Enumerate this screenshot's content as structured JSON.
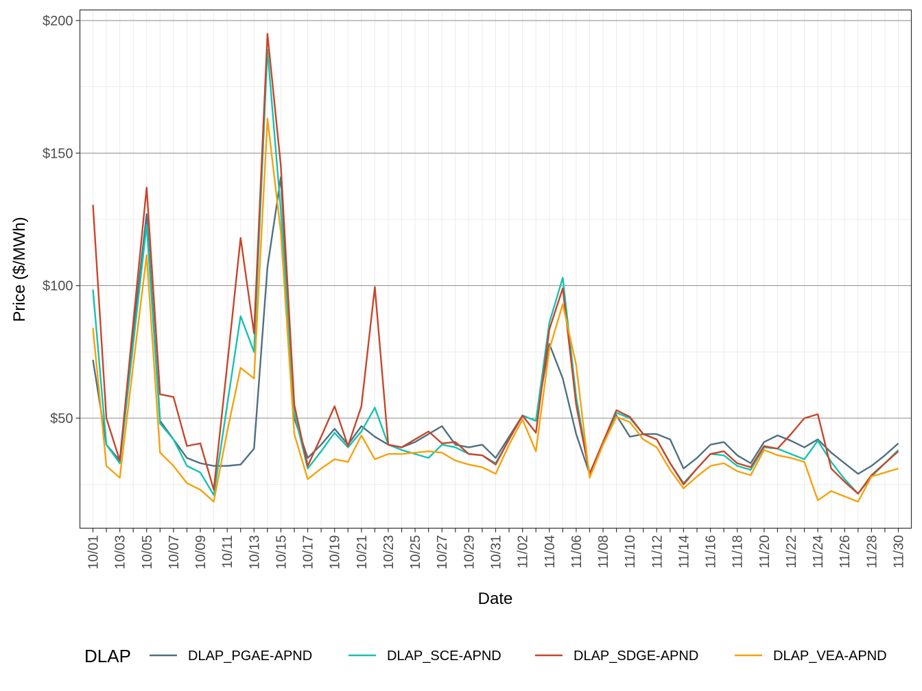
{
  "chart_data": {
    "type": "line",
    "title": "",
    "xlabel": "Date",
    "ylabel": "Price ($/MWh)",
    "ylim": [
      8.5,
      204
    ],
    "yticks": [
      50,
      100,
      150,
      200
    ],
    "ytick_labels": [
      "$50",
      "$100",
      "$150",
      "$200"
    ],
    "y_minor_ticks": [
      25,
      75,
      125,
      175
    ],
    "grid": true,
    "legend_position": "bottom",
    "legend_title": "DLAP",
    "x": [
      "10/01",
      "10/02",
      "10/03",
      "10/04",
      "10/05",
      "10/06",
      "10/07",
      "10/08",
      "10/09",
      "10/10",
      "10/11",
      "10/12",
      "10/13",
      "10/14",
      "10/15",
      "10/16",
      "10/17",
      "10/18",
      "10/19",
      "10/20",
      "10/21",
      "10/22",
      "10/23",
      "10/24",
      "10/25",
      "10/26",
      "10/27",
      "10/28",
      "10/29",
      "10/30",
      "10/31",
      "11/01",
      "11/02",
      "11/03",
      "11/04",
      "11/05",
      "11/06",
      "11/07",
      "11/08",
      "11/09",
      "11/10",
      "11/11",
      "11/12",
      "11/13",
      "11/14",
      "11/15",
      "11/16",
      "11/17",
      "11/18",
      "11/19",
      "11/20",
      "11/21",
      "11/22",
      "11/23",
      "11/24",
      "11/25",
      "11/26",
      "11/27",
      "11/28",
      "11/29",
      "11/30"
    ],
    "x_tick_labels": [
      "10/01",
      "10/03",
      "10/05",
      "10/07",
      "10/09",
      "10/11",
      "10/13",
      "10/15",
      "10/17",
      "10/19",
      "10/21",
      "10/23",
      "10/25",
      "10/27",
      "10/29",
      "10/31",
      "11/02",
      "11/04",
      "11/06",
      "11/08",
      "11/10",
      "11/12",
      "11/14",
      "11/16",
      "11/18",
      "11/20",
      "11/22",
      "11/24",
      "11/26",
      "11/28",
      "11/30"
    ],
    "series": [
      {
        "name": "DLAP_PGAE-APND",
        "color": "#4e7080",
        "values": [
          72,
          40,
          34,
          82,
          127,
          49,
          42,
          35,
          33,
          32,
          32,
          32.5,
          38.5,
          107,
          141,
          50,
          35,
          40,
          46,
          40,
          47,
          43,
          40,
          39,
          41,
          44,
          47,
          40,
          39,
          40,
          35,
          43,
          51,
          49,
          78,
          65,
          44,
          29,
          40,
          51,
          43,
          44,
          44,
          42,
          31,
          35,
          40,
          41,
          36,
          33,
          41,
          43.5,
          41.5,
          39,
          42,
          37,
          33,
          29,
          32,
          36,
          40.5
        ]
      },
      {
        "name": "DLAP_SCE-APND",
        "color": "#16c2b0",
        "values": [
          98.5,
          40,
          33,
          78,
          123,
          48,
          42,
          32,
          29.5,
          21,
          55,
          88.5,
          75,
          189,
          128,
          52,
          31,
          37.5,
          44.5,
          39,
          45,
          54,
          40,
          38,
          36.5,
          35,
          40,
          39,
          36.5,
          36,
          33,
          42,
          51,
          49,
          86,
          103,
          58,
          29,
          41,
          52,
          50,
          44,
          42,
          33,
          25.5,
          31,
          36.5,
          36,
          32,
          30.5,
          39,
          38.5,
          36.5,
          34.5,
          41.5,
          33.5,
          27,
          21.5,
          28,
          33,
          38
        ]
      },
      {
        "name": "DLAP_SDGE-APND",
        "color": "#c8452a",
        "values": [
          130.5,
          50,
          34,
          86,
          137,
          59,
          58,
          39.5,
          40.5,
          23,
          70,
          118,
          82,
          195,
          145,
          55,
          32,
          43,
          54.5,
          39.5,
          54.5,
          99.5,
          40,
          39,
          42,
          45,
          40.5,
          41,
          36.5,
          36,
          32.5,
          42,
          51,
          44.5,
          83.5,
          99,
          55,
          29,
          41,
          53,
          50.5,
          44,
          42,
          33,
          25,
          31,
          36.5,
          37.5,
          33,
          31.5,
          39.5,
          38.5,
          44,
          50,
          51.5,
          31,
          26,
          21.5,
          28.5,
          33,
          37.5
        ]
      },
      {
        "name": "DLAP_VEA-APND",
        "color": "#f5a20d",
        "values": [
          84,
          32,
          27.5,
          70,
          111.5,
          37,
          32,
          25.5,
          23,
          18.5,
          45,
          69,
          65,
          163,
          120,
          44,
          27,
          31,
          34.5,
          33.5,
          43.5,
          34.5,
          36.5,
          36.5,
          37,
          37.5,
          37,
          34,
          32.5,
          31.5,
          29,
          40,
          49.5,
          37.5,
          76,
          93,
          70,
          27.5,
          40,
          50.5,
          48.5,
          42,
          39,
          30.5,
          23.5,
          28,
          32,
          33,
          30,
          28.5,
          38,
          36,
          35,
          33.5,
          19,
          22.5,
          20.5,
          18.5,
          28,
          29.5,
          31
        ]
      }
    ]
  }
}
